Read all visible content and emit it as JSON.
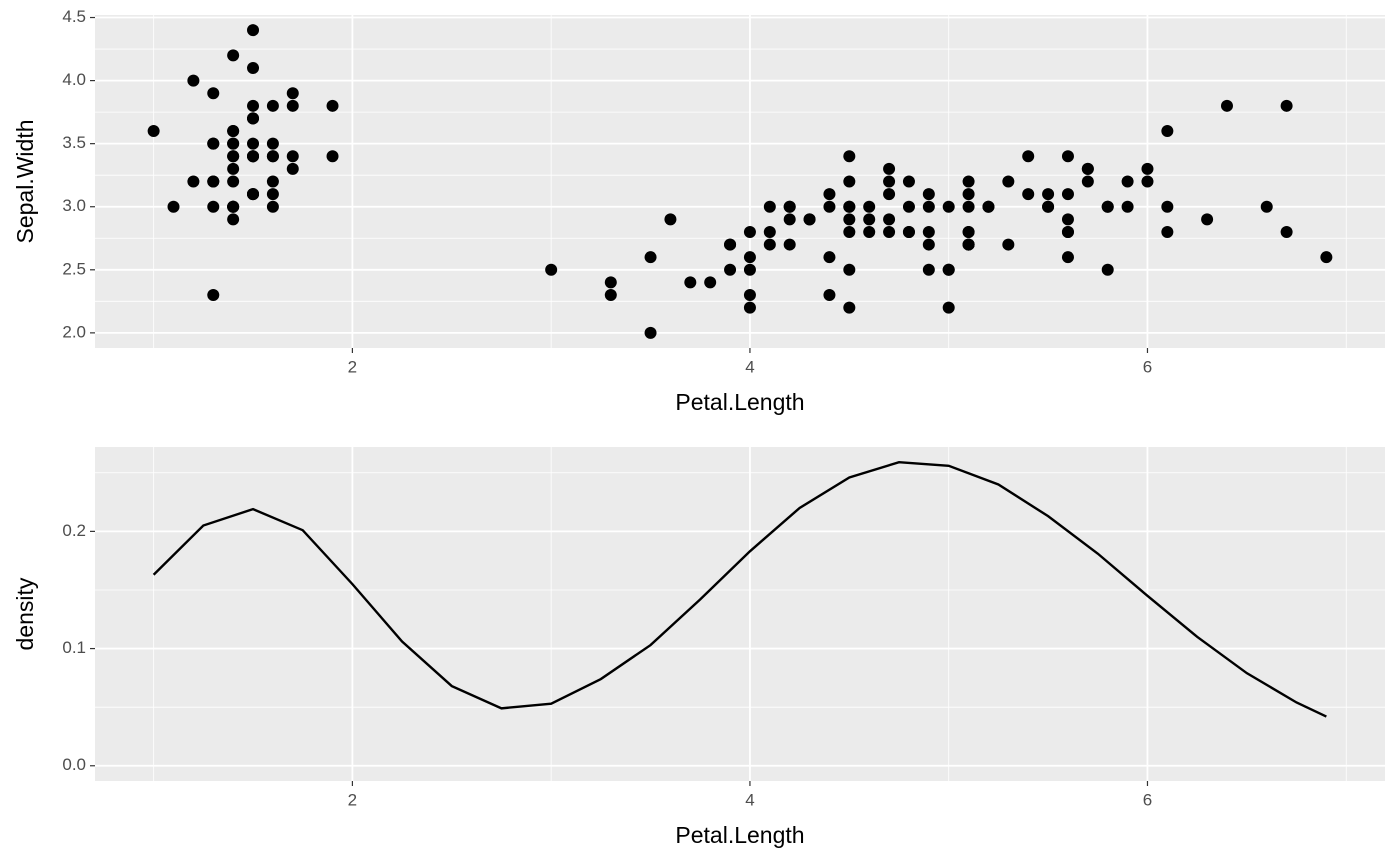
{
  "chart_data": [
    {
      "type": "scatter",
      "xlabel": "Petal.Length",
      "ylabel": "Sepal.Width",
      "color": "#000000",
      "grid": true,
      "xlim": [
        0.705,
        7.195
      ],
      "ylim": [
        1.88,
        4.52
      ],
      "xticks": [
        2,
        4,
        6
      ],
      "yticks": [
        {
          "value": 2,
          "label": "2.0"
        },
        2.5,
        {
          "value": 3,
          "label": "3.0"
        },
        3.5,
        {
          "value": 4,
          "label": "4.0"
        },
        4.5
      ],
      "x": [
        1.4,
        1.4,
        1.3,
        1.5,
        1.4,
        1.7,
        1.4,
        1.5,
        1.4,
        1.5,
        1.5,
        1.6,
        1.4,
        1.1,
        1.2,
        1.5,
        1.3,
        1.4,
        1.7,
        1.5,
        1.7,
        1.5,
        1.0,
        1.7,
        1.9,
        1.6,
        1.6,
        1.5,
        1.4,
        1.6,
        1.6,
        1.5,
        1.5,
        1.4,
        1.5,
        1.2,
        1.3,
        1.4,
        1.3,
        1.5,
        1.3,
        1.3,
        1.3,
        1.6,
        1.9,
        1.4,
        1.6,
        1.4,
        1.5,
        1.4,
        4.7,
        4.5,
        4.9,
        4.0,
        4.6,
        4.5,
        4.7,
        3.3,
        4.6,
        3.9,
        3.5,
        4.2,
        4.0,
        4.7,
        3.6,
        4.4,
        4.5,
        4.1,
        4.5,
        3.9,
        4.8,
        4.0,
        4.9,
        4.7,
        4.3,
        4.4,
        4.8,
        5.0,
        4.5,
        3.5,
        3.8,
        3.7,
        3.9,
        5.1,
        4.5,
        4.5,
        4.7,
        4.4,
        4.1,
        4.0,
        4.4,
        4.6,
        4.0,
        3.3,
        4.2,
        4.2,
        4.2,
        4.3,
        3.0,
        4.1,
        6.0,
        5.1,
        5.9,
        5.6,
        5.8,
        6.6,
        4.5,
        6.3,
        5.8,
        6.1,
        5.1,
        5.3,
        5.5,
        5.0,
        5.1,
        5.3,
        5.5,
        6.7,
        6.9,
        5.0,
        5.7,
        4.9,
        6.7,
        4.9,
        5.7,
        6.0,
        4.8,
        4.9,
        5.6,
        5.8,
        6.1,
        6.4,
        5.6,
        5.1,
        5.6,
        6.1,
        5.6,
        5.5,
        4.8,
        5.4,
        5.6,
        5.1,
        5.1,
        5.9,
        5.7,
        5.2,
        5.0,
        5.2,
        5.4,
        5.1
      ],
      "values": [
        3.5,
        3.0,
        3.2,
        3.1,
        3.6,
        3.9,
        3.4,
        3.4,
        2.9,
        3.1,
        3.7,
        3.4,
        3.0,
        3.0,
        4.0,
        4.4,
        3.9,
        3.5,
        3.8,
        3.8,
        3.4,
        3.7,
        3.6,
        3.3,
        3.4,
        3.0,
        3.4,
        3.5,
        3.4,
        3.2,
        3.1,
        3.4,
        4.1,
        4.2,
        3.1,
        3.2,
        3.5,
        3.6,
        3.0,
        3.4,
        3.5,
        2.3,
        3.2,
        3.5,
        3.8,
        3.0,
        3.8,
        3.2,
        3.7,
        3.3,
        3.2,
        3.2,
        3.1,
        2.3,
        2.8,
        2.8,
        3.3,
        2.4,
        2.9,
        2.7,
        2.0,
        3.0,
        2.2,
        2.9,
        2.9,
        3.1,
        3.0,
        2.7,
        2.2,
        2.5,
        3.2,
        2.8,
        2.5,
        2.8,
        2.9,
        3.0,
        2.8,
        3.0,
        2.9,
        2.6,
        2.4,
        2.4,
        2.7,
        2.7,
        3.0,
        3.4,
        3.1,
        2.3,
        3.0,
        2.5,
        2.6,
        3.0,
        2.6,
        2.3,
        2.7,
        3.0,
        2.9,
        2.9,
        2.5,
        2.8,
        3.3,
        2.7,
        3.0,
        2.9,
        3.0,
        3.0,
        2.5,
        2.9,
        2.5,
        3.6,
        3.2,
        2.7,
        3.0,
        2.5,
        2.8,
        3.2,
        3.0,
        3.8,
        2.6,
        2.2,
        3.2,
        2.8,
        2.8,
        2.7,
        3.3,
        3.2,
        2.8,
        3.0,
        2.8,
        3.0,
        2.8,
        3.8,
        2.8,
        2.8,
        2.6,
        3.0,
        3.4,
        3.1,
        3.0,
        3.1,
        3.1,
        3.1,
        2.7,
        3.2,
        3.3,
        3.0,
        2.5,
        3.0,
        3.4,
        3.0
      ]
    },
    {
      "type": "line",
      "xlabel": "Petal.Length",
      "ylabel": "density",
      "color": "#000000",
      "grid": true,
      "xlim": [
        0.705,
        7.195
      ],
      "ylim": [
        -0.013,
        0.272
      ],
      "xticks": [
        2,
        4,
        6
      ],
      "yticks": [
        {
          "value": 0,
          "label": "0.0"
        },
        0.1,
        0.2
      ],
      "x": [
        1,
        1.25,
        1.5,
        1.75,
        2,
        2.25,
        2.5,
        2.75,
        3,
        3.25,
        3.5,
        3.75,
        4,
        4.25,
        4.5,
        4.75,
        5,
        5.25,
        5.5,
        5.75,
        6,
        6.25,
        6.5,
        6.75,
        6.9
      ],
      "values": [
        0.163,
        0.205,
        0.219,
        0.201,
        0.155,
        0.106,
        0.068,
        0.049,
        0.053,
        0.074,
        0.103,
        0.142,
        0.183,
        0.22,
        0.246,
        0.259,
        0.256,
        0.24,
        0.213,
        0.181,
        0.145,
        0.11,
        0.079,
        0.054,
        0.042
      ]
    }
  ]
}
